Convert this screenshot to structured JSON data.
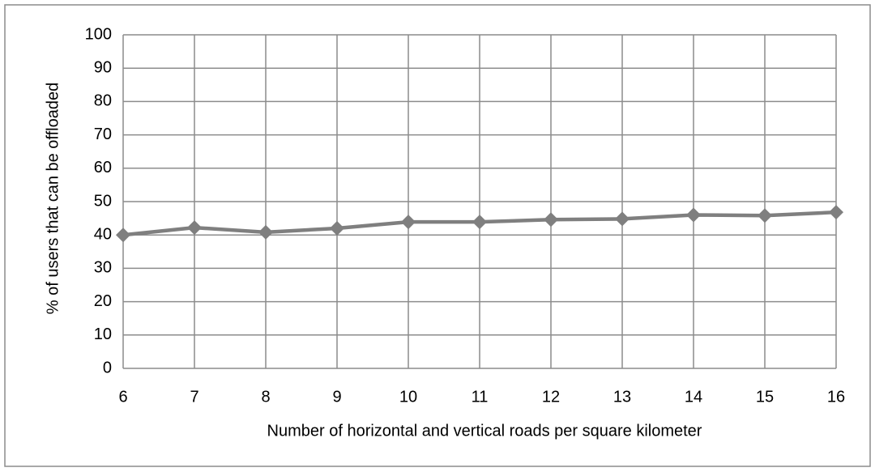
{
  "chart_data": {
    "type": "line",
    "x_label": "Number of horizontal and vertical roads per square kilometer",
    "y_label": "% of users that can be offloaded",
    "x": [
      6,
      7,
      8,
      9,
      10,
      11,
      12,
      13,
      14,
      15,
      16
    ],
    "series": [
      {
        "name": null,
        "color": "#7f7f7f",
        "values": [
          40,
          42.2,
          40.8,
          42,
          43.9,
          43.9,
          44.6,
          44.8,
          46,
          45.8,
          46.8
        ]
      }
    ],
    "xlim": [
      6,
      16
    ],
    "xticks": [
      6,
      7,
      8,
      9,
      10,
      11,
      12,
      13,
      14,
      15,
      16
    ],
    "ylim": [
      0,
      100
    ],
    "yticks": [
      0,
      10,
      20,
      30,
      40,
      50,
      60,
      70,
      80,
      90,
      100
    ],
    "grid": true
  }
}
